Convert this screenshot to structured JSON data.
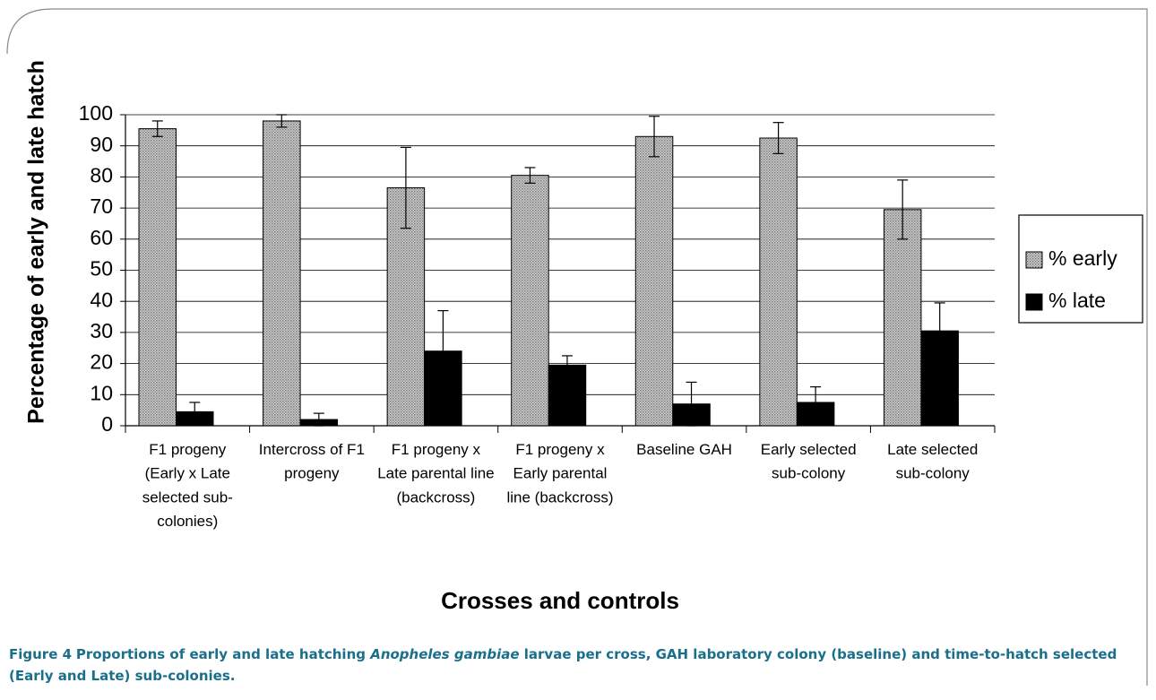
{
  "chart_data": {
    "type": "bar",
    "y_label": "Percentage of early and late hatch",
    "x_label": "Crosses and controls",
    "categories": [
      "F1 progeny (Early x Late selected sub-colonies)",
      "Intercross of F1 progeny",
      "F1 progeny x Late parental line (backcross)",
      "F1 progeny x Early parental line (backcross)",
      "Baseline GAH",
      "Early selected sub-colony",
      "Late selected sub-colony"
    ],
    "series": [
      {
        "name": "% early",
        "color": "#b4b4b4",
        "values": [
          95.5,
          98,
          76.5,
          80.5,
          93,
          92.5,
          69.5
        ],
        "errors": [
          2.5,
          2,
          13,
          2.5,
          6.5,
          5,
          9.5
        ]
      },
      {
        "name": "% late",
        "color": "#000000",
        "values": [
          4.5,
          2,
          24,
          19.5,
          7,
          7.5,
          30.5
        ],
        "errors": [
          3,
          2,
          13,
          3,
          7,
          5,
          9
        ]
      }
    ],
    "ylim": [
      0,
      100
    ],
    "yticks": [
      0,
      10,
      20,
      30,
      40,
      50,
      60,
      70,
      80,
      90,
      100
    ],
    "grid": true,
    "legend": "right"
  },
  "caption": {
    "label": "Figure 4",
    "text_before": "Proportions of early and late hatching ",
    "species": "Anopheles gambiae",
    "text_after": " larvae per cross, GAH laboratory colony (baseline) and time-to-hatch selected (Early and Late) sub-colonies."
  }
}
